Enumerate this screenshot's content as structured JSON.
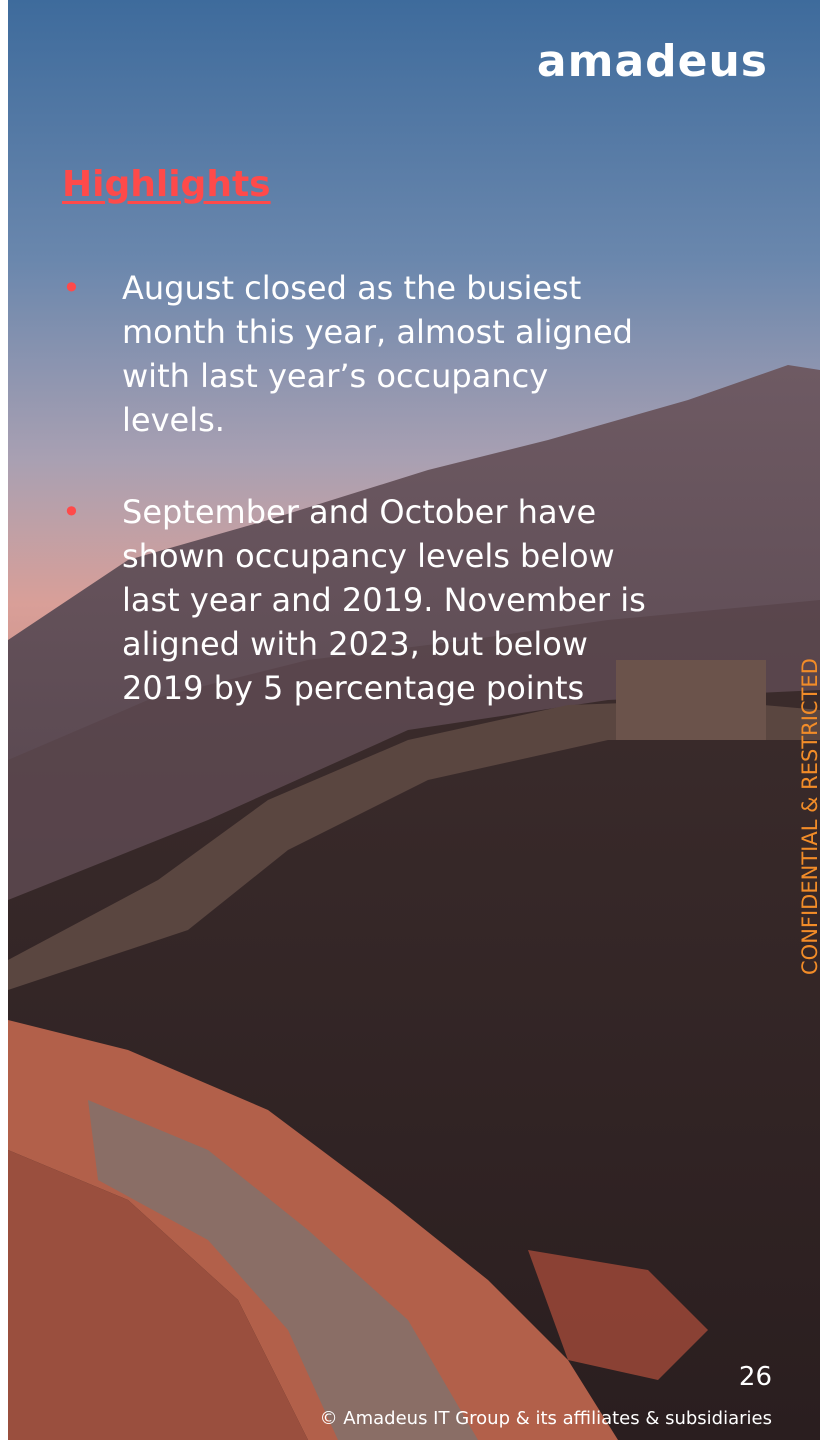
{
  "logo": "amadeus",
  "heading": "Highlights",
  "bullets": [
    "August closed as the busiest month this year, almost aligned with last year’s occupancy levels.",
    "September and October have shown occupancy levels below last year and 2019. November is aligned with 2023, but below 2019 by 5 percentage points"
  ],
  "side_label": "CONFIDENTIAL & RESTRICTED",
  "page_number": 26,
  "footer": "© Amadeus IT Group & its affiliates & subsidiaries"
}
